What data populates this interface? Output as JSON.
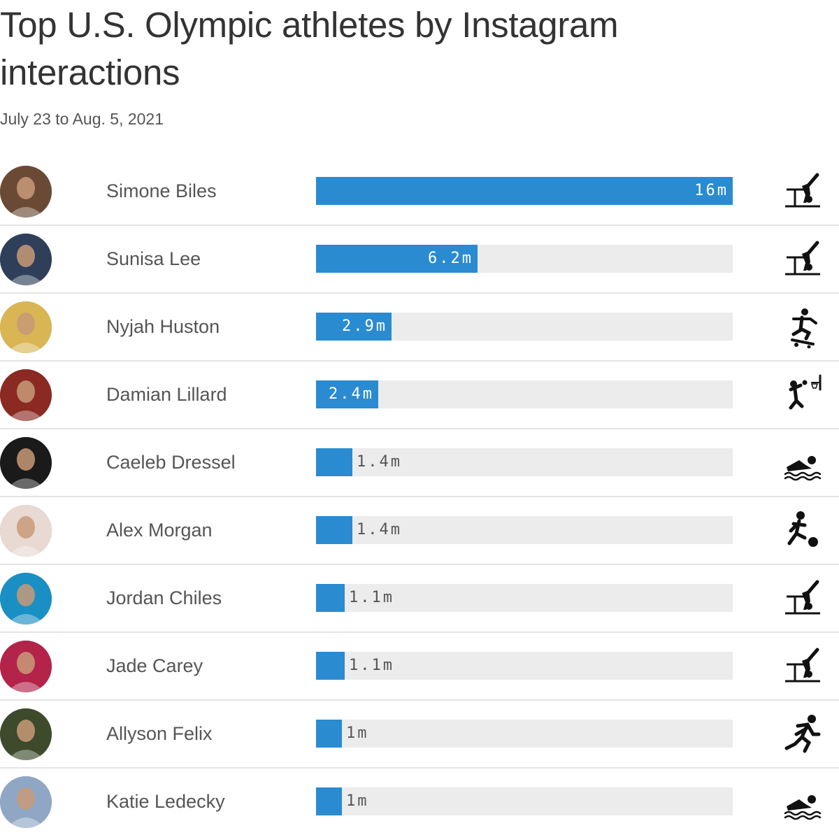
{
  "title": "Top U.S. Olympic athletes by Instagram interactions",
  "subtitle": "July 23 to Aug. 5, 2021",
  "chart_data": {
    "type": "bar",
    "orientation": "horizontal",
    "title": "Top U.S. Olympic athletes by Instagram interactions",
    "subtitle": "July 23 to Aug. 5, 2021",
    "xlim": [
      0,
      16
    ],
    "unit": "million interactions",
    "bar_color": "#2a8bd1",
    "track_color": "#ececec",
    "categories": [
      "Simone Biles",
      "Sunisa Lee",
      "Nyjah Huston",
      "Damian Lillard",
      "Caeleb Dressel",
      "Alex Morgan",
      "Jordan Chiles",
      "Jade Carey",
      "Allyson Felix",
      "Katie Ledecky"
    ],
    "values": [
      16,
      6.2,
      2.9,
      2.4,
      1.4,
      1.4,
      1.1,
      1.1,
      1,
      1
    ],
    "rows": [
      {
        "name": "Simone Biles",
        "value": 16,
        "label": "16m",
        "sport_icon": "gymnastics-icon",
        "avatar_color": "#6b4a35"
      },
      {
        "name": "Sunisa Lee",
        "value": 6.2,
        "label": "6.2m",
        "sport_icon": "gymnastics-icon",
        "avatar_color": "#2f3f5a"
      },
      {
        "name": "Nyjah Huston",
        "value": 2.9,
        "label": "2.9m",
        "sport_icon": "skateboarding-icon",
        "avatar_color": "#d9b653"
      },
      {
        "name": "Damian Lillard",
        "value": 2.4,
        "label": "2.4m",
        "sport_icon": "basketball-icon",
        "avatar_color": "#8a2a22"
      },
      {
        "name": "Caeleb Dressel",
        "value": 1.4,
        "label": "1.4m",
        "sport_icon": "swimming-icon",
        "avatar_color": "#1a1a1a"
      },
      {
        "name": "Alex Morgan",
        "value": 1.4,
        "label": "1.4m",
        "sport_icon": "soccer-icon",
        "avatar_color": "#e8d9d2"
      },
      {
        "name": "Jordan Chiles",
        "value": 1.1,
        "label": "1.1m",
        "sport_icon": "gymnastics-icon",
        "avatar_color": "#1a8fc4"
      },
      {
        "name": "Jade Carey",
        "value": 1.1,
        "label": "1.1m",
        "sport_icon": "gymnastics-icon",
        "avatar_color": "#b3234a"
      },
      {
        "name": "Allyson Felix",
        "value": 1,
        "label": "1m",
        "sport_icon": "running-icon",
        "avatar_color": "#3d4a2c"
      },
      {
        "name": "Katie Ledecky",
        "value": 1,
        "label": "1m",
        "sport_icon": "swimming-icon",
        "avatar_color": "#8fa7c4"
      }
    ]
  }
}
